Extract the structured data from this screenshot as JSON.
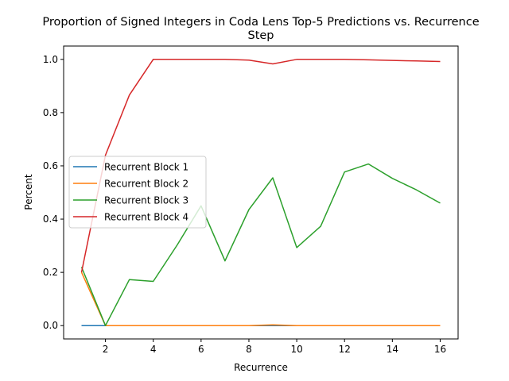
{
  "chart_data": {
    "type": "line",
    "title_line1": "Proportion of Signed Integers in Coda Lens Top-5 Predictions vs. Recurrence",
    "title_line2": "Step",
    "xlabel": "Recurrence",
    "ylabel": "Percent",
    "xlim": [
      0.25,
      16.75
    ],
    "ylim": [
      -0.05,
      1.05
    ],
    "xticks": [
      2,
      4,
      6,
      8,
      10,
      12,
      14,
      16
    ],
    "yticks": [
      0.0,
      0.2,
      0.4,
      0.6,
      0.8,
      1.0
    ],
    "ytick_labels": [
      "0.0",
      "0.2",
      "0.4",
      "0.6",
      "0.8",
      "1.0"
    ],
    "grid": false,
    "legend_position": "center-left",
    "x": [
      1,
      2,
      3,
      4,
      5,
      6,
      7,
      8,
      9,
      10,
      11,
      12,
      13,
      14,
      15,
      16
    ],
    "series": [
      {
        "name": "Recurrent Block 1",
        "color": "#1f77b4",
        "values": [
          0.0,
          0.0,
          0.0,
          0.0,
          0.0,
          0.0,
          0.0,
          0.0,
          0.0,
          0.0,
          0.0,
          0.0,
          0.0,
          0.0,
          0.0,
          0.0
        ]
      },
      {
        "name": "Recurrent Block 2",
        "color": "#ff7f0e",
        "values": [
          0.2,
          0.0,
          0.0,
          0.0,
          0.0,
          0.0,
          0.0,
          0.0,
          0.003,
          0.0,
          0.0,
          0.0,
          0.0,
          0.0,
          0.0,
          0.0
        ]
      },
      {
        "name": "Recurrent Block 3",
        "color": "#2ca02c",
        "values": [
          0.22,
          0.0,
          0.173,
          0.166,
          0.303,
          0.45,
          0.243,
          0.436,
          0.555,
          0.293,
          0.373,
          0.577,
          0.607,
          0.553,
          0.51,
          0.46
        ]
      },
      {
        "name": "Recurrent Block 4",
        "color": "#d62728",
        "values": [
          0.2,
          0.64,
          0.866,
          1.0,
          1.0,
          1.0,
          1.0,
          0.997,
          0.983,
          1.0,
          1.0,
          1.0,
          0.998,
          0.996,
          0.994,
          0.992
        ]
      }
    ]
  }
}
